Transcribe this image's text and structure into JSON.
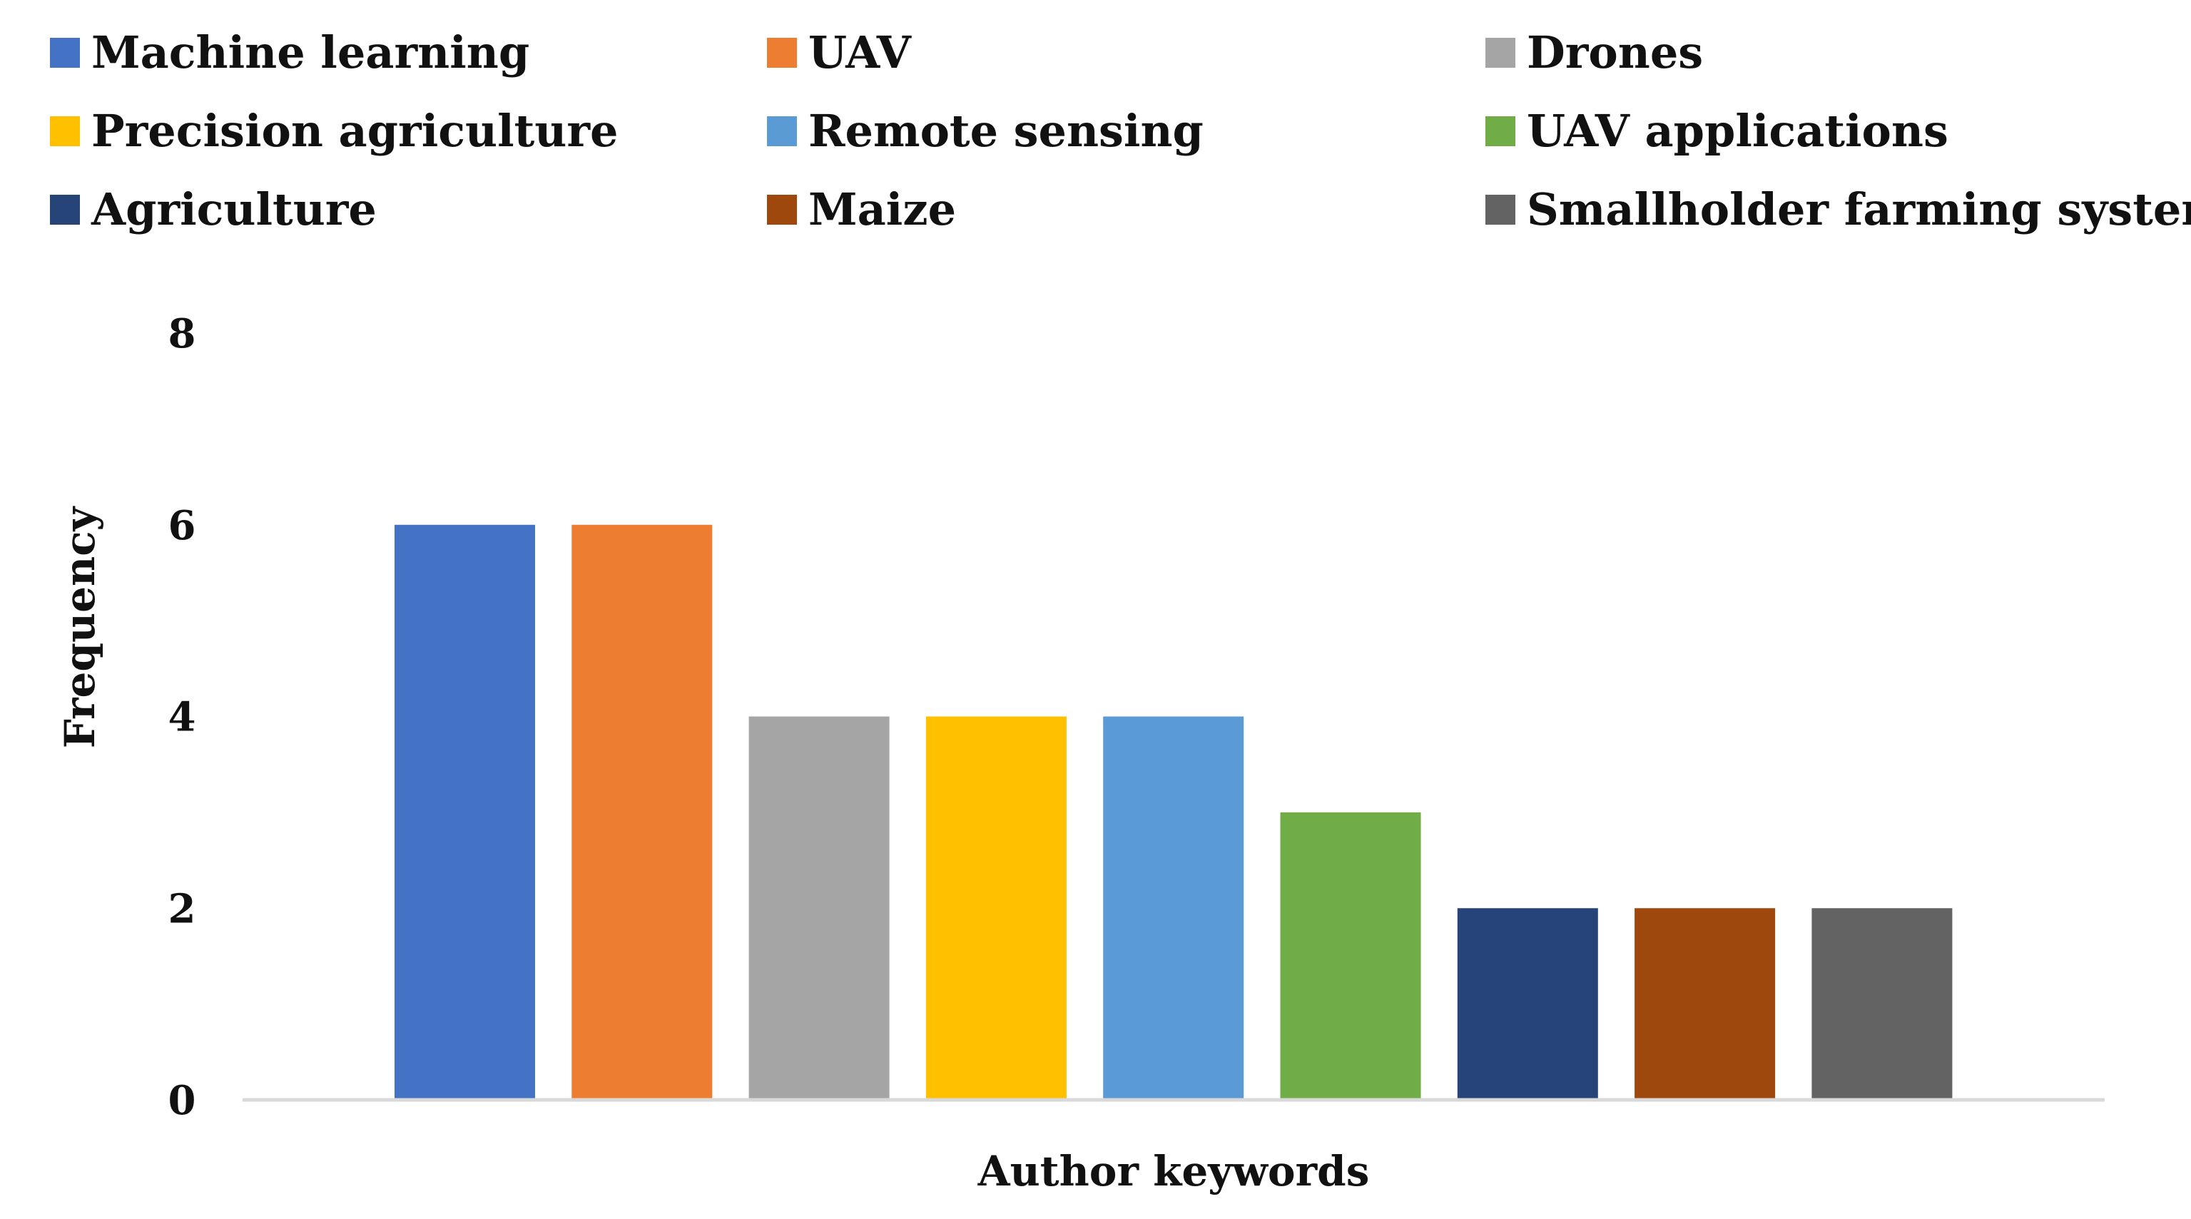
{
  "chart_data": {
    "type": "bar",
    "title": "",
    "xlabel": "Author keywords",
    "ylabel": "Frequency",
    "ylim": [
      0,
      8
    ],
    "yticks": [
      "0",
      "2",
      "4",
      "6",
      "8"
    ],
    "grid": false,
    "legend_position": "top",
    "series": [
      {
        "name": "Machine learning",
        "value": 6,
        "color": "#4472C4"
      },
      {
        "name": "UAV",
        "value": 6,
        "color": "#ED7D31"
      },
      {
        "name": "Drones",
        "value": 4,
        "color": "#A5A5A5"
      },
      {
        "name": "Precision agriculture",
        "value": 4,
        "color": "#FFC000"
      },
      {
        "name": "Remote sensing",
        "value": 4,
        "color": "#5B9BD5"
      },
      {
        "name": "UAV applications",
        "value": 3,
        "color": "#70AD47"
      },
      {
        "name": "Agriculture",
        "value": 2,
        "color": "#264478"
      },
      {
        "name": "Maize",
        "value": 2,
        "color": "#9E480E"
      },
      {
        "name": "Smallholder farming systems",
        "value": 2,
        "color": "#636363"
      }
    ]
  }
}
